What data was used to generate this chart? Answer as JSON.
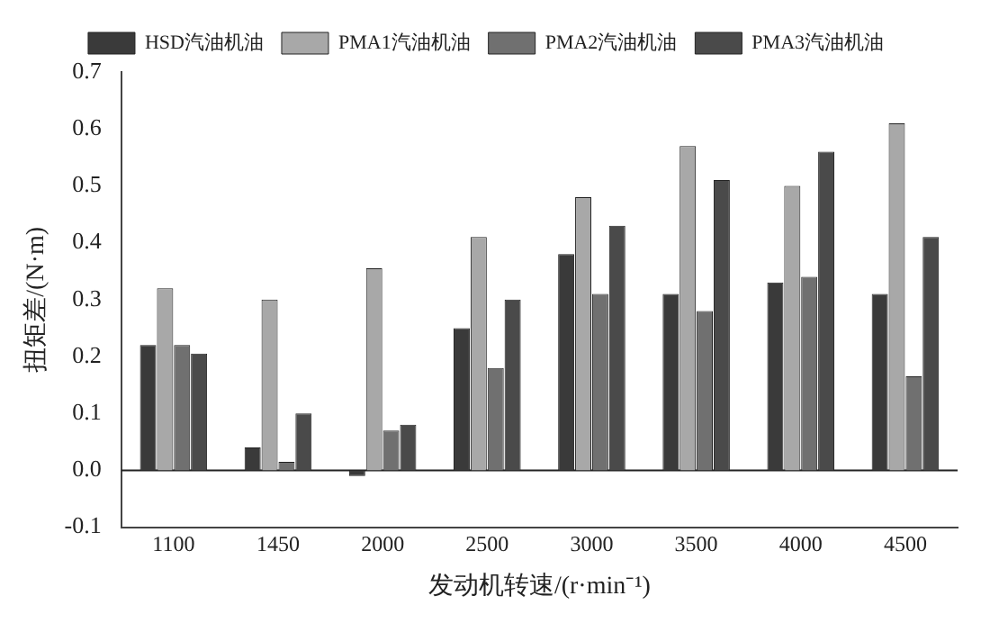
{
  "chart_data": {
    "type": "bar",
    "xlabel": "发动机转速/(r·min⁻¹)",
    "ylabel": "扭矩差/(N·m)",
    "categories": [
      "1100",
      "1450",
      "2000",
      "2500",
      "3000",
      "3500",
      "4000",
      "4500"
    ],
    "series": [
      {
        "name": "HSD汽油机油",
        "color": "#3a3a3a",
        "values": [
          0.22,
          0.04,
          -0.01,
          0.25,
          0.38,
          0.31,
          0.33,
          0.31
        ]
      },
      {
        "name": "PMA1汽油机油",
        "color": "#a8a8a8",
        "values": [
          0.32,
          0.3,
          0.355,
          0.41,
          0.48,
          0.57,
          0.5,
          0.61
        ]
      },
      {
        "name": "PMA2汽油机油",
        "color": "#707070",
        "values": [
          0.22,
          0.015,
          0.07,
          0.18,
          0.31,
          0.28,
          0.34,
          0.165
        ]
      },
      {
        "name": "PMA3汽油机油",
        "color": "#4a4a4a",
        "values": [
          0.205,
          0.1,
          0.08,
          0.3,
          0.43,
          0.51,
          0.56,
          0.41
        ]
      }
    ],
    "ylim": [
      -0.1,
      0.7
    ],
    "yticks": [
      {
        "value": -0.1,
        "label": "-0.1"
      },
      {
        "value": 0,
        "label": "0.0"
      },
      {
        "value": 0.1,
        "label": "0.1"
      },
      {
        "value": 0.2,
        "label": "0.2"
      },
      {
        "value": 0.3,
        "label": "0.3"
      },
      {
        "value": 0.4,
        "label": "0.4"
      },
      {
        "value": 0.5,
        "label": "0.5"
      },
      {
        "value": 0.6,
        "label": "0.6"
      },
      {
        "value": 0.7,
        "label": "0.7"
      }
    ],
    "ref_lines": [
      {
        "axis": "y",
        "value": 0,
        "color": "#222222"
      }
    ],
    "grid": false,
    "legend": "top"
  }
}
